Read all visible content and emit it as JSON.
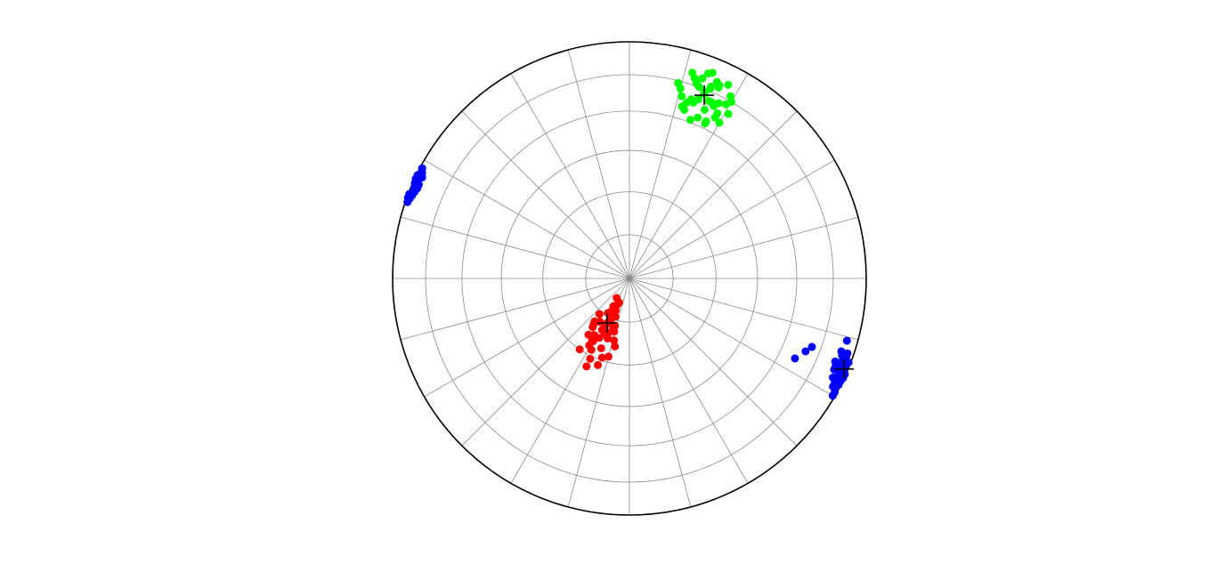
{
  "chart_data": {
    "type": "stereonet",
    "projection": "equal-area",
    "grid": true,
    "rlim": [
      90,
      0
    ],
    "rticks": [
      75,
      60,
      45,
      30,
      15
    ],
    "thetalim": [
      0,
      360
    ],
    "thetaticks": [
      0,
      15,
      30,
      45,
      60,
      75,
      90,
      105,
      120,
      135,
      150,
      165,
      180,
      195,
      210,
      225,
      240,
      255,
      270,
      285,
      300,
      315,
      330,
      345
    ],
    "series": [
      {
        "color": "#00ff00",
        "marker": "dot",
        "azimuth": [
          22,
          18,
          26,
          30,
          15,
          20,
          24,
          28,
          19,
          23,
          27,
          17,
          21,
          25,
          29,
          16,
          22,
          26,
          20,
          24,
          31,
          14,
          18,
          23,
          27,
          21,
          25,
          19,
          28,
          22,
          17,
          30,
          24,
          20,
          26,
          23,
          29,
          18,
          25,
          21,
          14
        ],
        "plunge": [
          17,
          12,
          20,
          15,
          18,
          22,
          10,
          24,
          14,
          27,
          9,
          25,
          8,
          19,
          13,
          21,
          16,
          28,
          11,
          23,
          20,
          16,
          26,
          14,
          18,
          29,
          12,
          21,
          22,
          7,
          10,
          25,
          19,
          15,
          27,
          13,
          17,
          23,
          11,
          20,
          16
        ]
      },
      {
        "color": "#ff0000",
        "marker": "dot",
        "azimuth": [
          206,
          200,
          212,
          195,
          218,
          205,
          210,
          198,
          215,
          203,
          208,
          192,
          220,
          200,
          213,
          207,
          196,
          211,
          204,
          217,
          199,
          209,
          202,
          214,
          206,
          194,
          210,
          201,
          216,
          205,
          208,
          197,
          212,
          203,
          219,
          206,
          200,
          211,
          204,
          207
        ],
        "plunge": [
          73,
          68,
          76,
          62,
          70,
          80,
          65,
          72,
          60,
          78,
          70,
          66,
          74,
          58,
          82,
          67,
          71,
          63,
          75,
          69,
          61,
          77,
          64,
          72,
          56,
          68,
          79,
          70,
          66,
          74,
          62,
          73,
          67,
          81,
          71,
          59,
          76,
          65,
          69,
          72
        ]
      },
      {
        "color": "#0000ff",
        "marker": "dot",
        "azimuth": [
          113,
          110,
          116,
          118,
          112,
          115,
          109,
          117,
          114,
          111,
          119,
          113,
          116,
          110,
          114,
          118,
          112,
          115,
          117,
          111,
          113,
          109,
          116,
          114,
          120,
          112,
          115,
          111,
          117,
          113,
          115.8,
          112.5,
          110.6,
          106
        ],
        "plunge": [
          2,
          5,
          1,
          3,
          4,
          0.5,
          6,
          2,
          3,
          1,
          1,
          5,
          4,
          3,
          6,
          2,
          7,
          1,
          3,
          2,
          4,
          3,
          5,
          0.5,
          1,
          2,
          3,
          4,
          1,
          6,
          23.4,
          20.6,
          18.8,
          5
        ]
      },
      {
        "color": "#0000ff",
        "marker": "dot",
        "azimuth": [
          294,
          292,
          296,
          290,
          298,
          293,
          295,
          291,
          297,
          294,
          289,
          296,
          292,
          295,
          293,
          298,
          291,
          294,
          290,
          296
        ],
        "plunge": [
          1,
          2,
          0.5,
          1.5,
          1,
          3,
          2,
          0.5,
          2,
          1,
          1,
          3,
          2.5,
          0.5,
          1.5,
          1,
          2,
          3,
          0.5,
          2
        ]
      },
      {
        "color": "#000000",
        "marker": "cross",
        "azimuth": [
          22.2,
          206.6,
          112.9
        ],
        "plunge": [
          17.5,
          72.9,
          1.8
        ]
      }
    ]
  }
}
